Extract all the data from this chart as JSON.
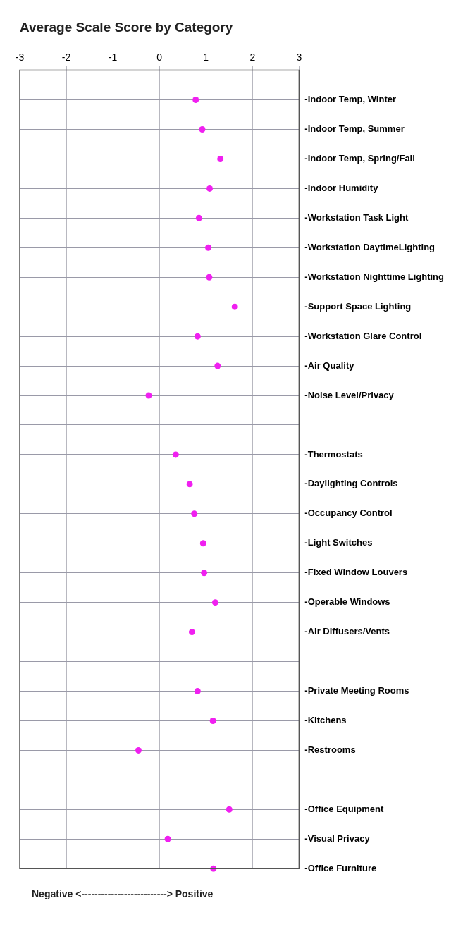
{
  "chart_data": {
    "type": "scatter",
    "title": "Average Scale Score by Category",
    "orientation": "horizontal",
    "categories": [
      null,
      "-Indoor Temp, Winter",
      "-Indoor Temp, Summer",
      "-Indoor Temp, Spring/Fall",
      "-Indoor Humidity",
      "-Workstation Task Light",
      "-Workstation DaytimeLighting",
      "-Workstation Nighttime Lighting",
      "-Support Space Lighting",
      "-Workstation Glare Control",
      "-Air Quality",
      "-Noise Level/Privacy",
      null,
      "-Thermostats",
      "-Daylighting Controls",
      "-Occupancy Control",
      "-Light Switches",
      "-Fixed Window Louvers",
      "-Operable Windows",
      "-Air Diffusers/Vents",
      null,
      "-Private Meeting Rooms",
      "-Kitchens",
      "-Restrooms",
      null,
      "-Office Equipment",
      "-Visual Privacy",
      "-Office Furniture"
    ],
    "values": [
      null,
      0.78,
      0.92,
      1.31,
      1.08,
      0.85,
      1.05,
      1.07,
      1.62,
      0.82,
      1.25,
      -0.23,
      null,
      0.35,
      0.65,
      0.75,
      0.94,
      0.96,
      1.2,
      0.7,
      null,
      0.82,
      1.15,
      -0.45,
      null,
      1.5,
      0.18,
      1.16
    ],
    "color": "#f020f0",
    "marker": "circle",
    "xlim": [
      -3,
      3
    ],
    "xticks": [
      -3,
      -2,
      -1,
      0,
      1,
      2,
      3
    ],
    "grid": true,
    "annotations": [
      "Negative <--------------------------> Positive"
    ]
  }
}
